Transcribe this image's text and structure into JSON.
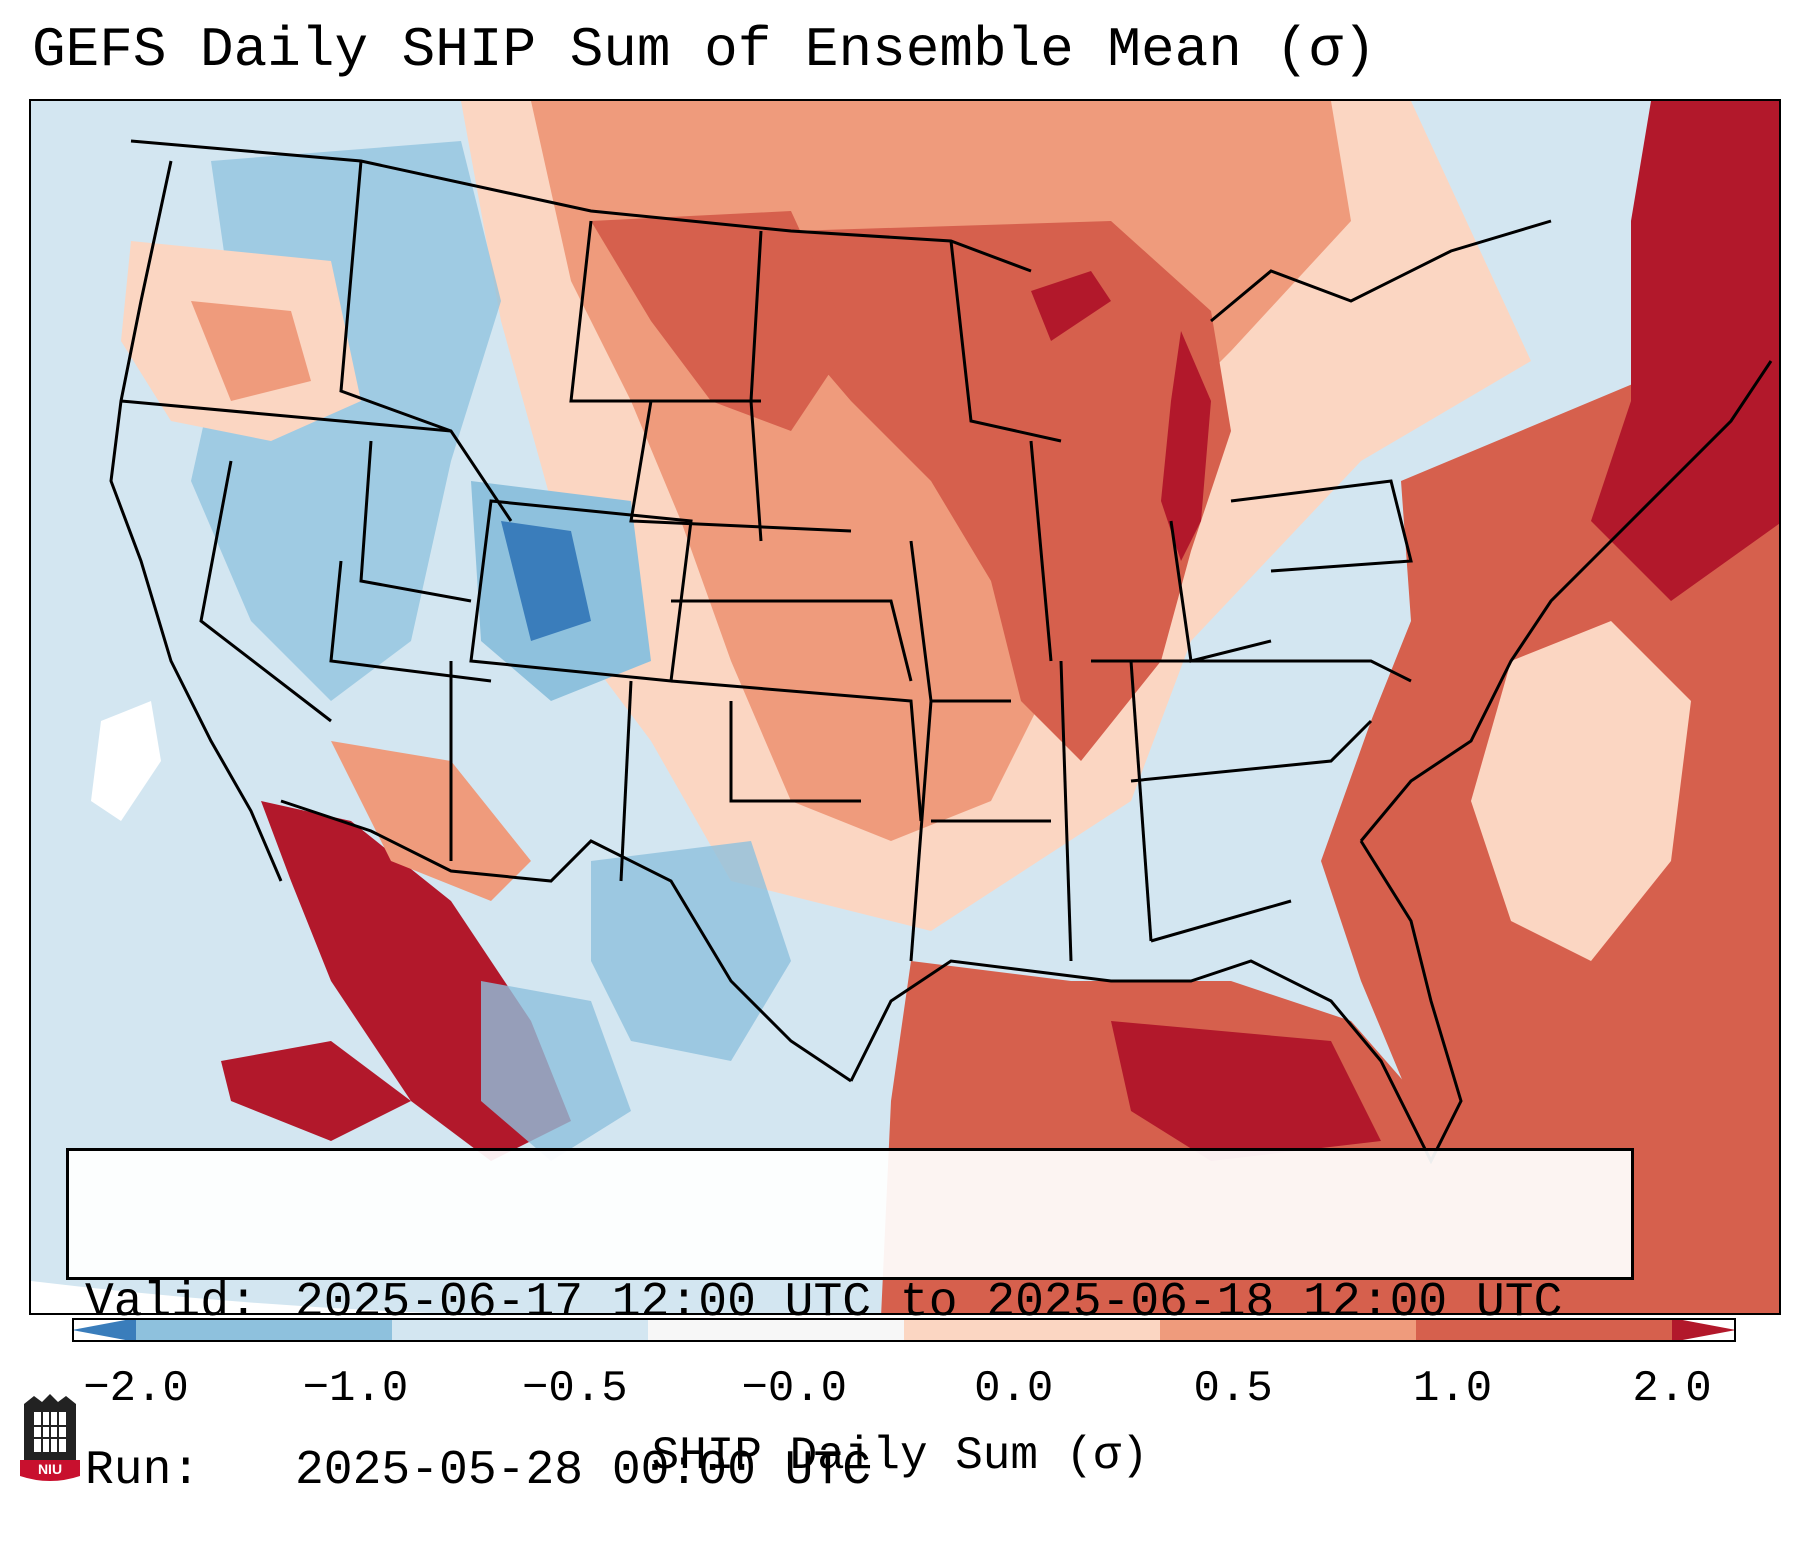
{
  "title": "GEFS Daily SHIP Sum of Ensemble Mean (σ)",
  "info": {
    "valid_label": "Valid:",
    "valid_value": "2025-06-17 12:00 UTC to 2025-06-18 12:00 UTC",
    "run_label": "Run:",
    "run_value": "2025-05-28 00:00 UTC"
  },
  "colorbar": {
    "label": "SHIP Daily Sum (σ)",
    "ticks": [
      "−2.0",
      "−1.0",
      "−0.5",
      "−0.0",
      "0.0",
      "0.5",
      "1.0",
      "2.0"
    ],
    "colors": [
      "#3a7dbb",
      "#8ec1dd",
      "#d3e6f1",
      "#f7f7f7",
      "#fbd6c2",
      "#ef9b7c",
      "#d6604d",
      "#b2182b"
    ]
  },
  "logo": {
    "text": "NIU"
  },
  "map": {
    "region": "Contiguous United States",
    "palette": {
      "dark_blue": "#3a7dbb",
      "mid_blue": "#8ec1dd",
      "light_blue": "#d3e6f1",
      "white": "#f7f7f7",
      "light_red": "#fbd6c2",
      "mid_red": "#ef9b7c",
      "red": "#d6604d",
      "dark_red": "#b2182b",
      "background": "#d3e6f1",
      "borders": "#000000"
    }
  }
}
